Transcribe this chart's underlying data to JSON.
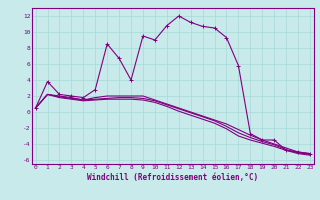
{
  "xlabel": "Windchill (Refroidissement éolien,°C)",
  "bg_color": "#c8eaea",
  "line_color": "#800080",
  "x": [
    0,
    1,
    2,
    3,
    4,
    5,
    6,
    7,
    8,
    9,
    10,
    11,
    12,
    13,
    14,
    15,
    16,
    17,
    18,
    19,
    20,
    21,
    22,
    23
  ],
  "series": [
    [
      0.5,
      3.8,
      2.2,
      2.0,
      1.8,
      2.8,
      8.5,
      6.7,
      4.0,
      9.5,
      9.0,
      10.8,
      12.0,
      11.2,
      10.7,
      10.5,
      9.3,
      5.8,
      -2.7,
      -3.5,
      -3.5,
      -4.8,
      -5.0,
      -5.2
    ],
    [
      0.5,
      2.2,
      2.0,
      1.8,
      1.5,
      1.8,
      2.0,
      2.0,
      2.0,
      2.0,
      1.5,
      1.0,
      0.5,
      0.0,
      -0.5,
      -1.0,
      -1.5,
      -2.2,
      -2.9,
      -3.5,
      -4.0,
      -4.5,
      -5.0,
      -5.2
    ],
    [
      0.5,
      2.2,
      1.9,
      1.7,
      1.5,
      1.6,
      1.7,
      1.8,
      1.8,
      1.7,
      1.4,
      0.9,
      0.4,
      -0.1,
      -0.6,
      -1.1,
      -1.8,
      -2.6,
      -3.2,
      -3.7,
      -4.1,
      -4.7,
      -5.1,
      -5.3
    ],
    [
      0.5,
      2.2,
      1.8,
      1.6,
      1.4,
      1.5,
      1.6,
      1.6,
      1.6,
      1.5,
      1.2,
      0.7,
      0.1,
      -0.4,
      -0.9,
      -1.4,
      -2.1,
      -3.0,
      -3.5,
      -3.9,
      -4.3,
      -4.8,
      -5.2,
      -5.4
    ]
  ],
  "ylim": [
    -6.5,
    13.0
  ],
  "xlim": [
    -0.3,
    23.3
  ],
  "yticks": [
    -6,
    -4,
    -2,
    0,
    2,
    4,
    6,
    8,
    10,
    12
  ],
  "xticks": [
    0,
    1,
    2,
    3,
    4,
    5,
    6,
    7,
    8,
    9,
    10,
    11,
    12,
    13,
    14,
    15,
    16,
    17,
    18,
    19,
    20,
    21,
    22,
    23
  ],
  "marker": "+",
  "markersize": 3,
  "linewidth": 0.8,
  "tick_fontsize": 4.5,
  "label_fontsize": 5.5,
  "grid_color": "#a8d8d8",
  "spine_color": "#800080"
}
